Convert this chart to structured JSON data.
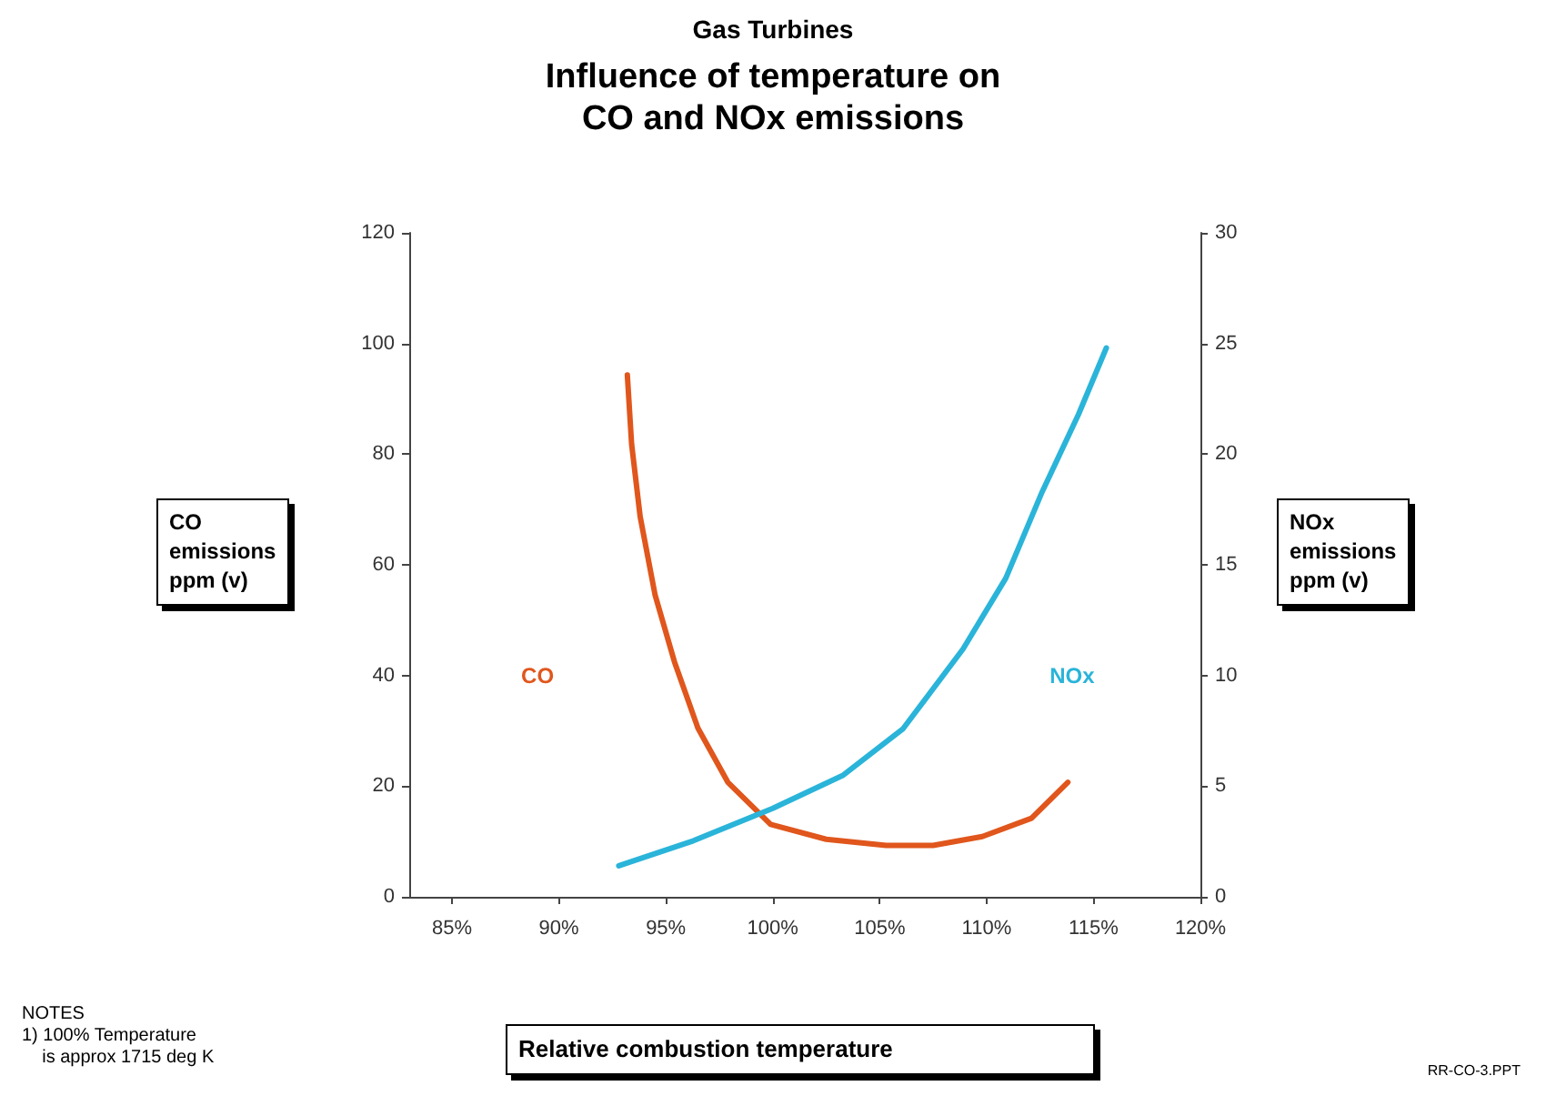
{
  "chart_data": {
    "type": "line",
    "title": "Gas Turbines",
    "subtitle": "Influence of temperature on\nCO and NOx emissions",
    "xlabel": "Relative combustion temperature",
    "ylabel": "CO\nemissions\nppm (v)",
    "y2label": "NOx\nemissions\nppm (v)",
    "xlim": [
      83,
      120
    ],
    "xticks": [
      {
        "value": 85,
        "label": "85%"
      },
      {
        "value": 90,
        "label": "90%"
      },
      {
        "value": 95,
        "label": "95%"
      },
      {
        "value": 100,
        "label": "100%"
      },
      {
        "value": 105,
        "label": "105%"
      },
      {
        "value": 110,
        "label": "110%"
      },
      {
        "value": 115,
        "label": "115%"
      },
      {
        "value": 120,
        "label": "120%"
      }
    ],
    "ylim": [
      0,
      120
    ],
    "yticks": [
      0,
      20,
      40,
      60,
      80,
      100,
      120
    ],
    "y2lim": [
      0,
      30
    ],
    "y2ticks": [
      0,
      5,
      10,
      15,
      20,
      25,
      30
    ],
    "grid": false,
    "marker": "none",
    "line_style": "solid",
    "series": [
      {
        "name": "CO",
        "color": "#e0561c",
        "x": [
          93.2,
          93.4,
          93.8,
          94.5,
          95.4,
          96.5,
          97.9,
          99.9,
          102.5,
          105.3,
          107.5,
          109.8,
          112.1,
          113.8
        ],
        "values": [
          94.3,
          81.8,
          68.7,
          54.5,
          42.5,
          30.5,
          20.7,
          13.1,
          10.4,
          9.3,
          9.3,
          10.9,
          14.2,
          20.7
        ]
      },
      {
        "name": "NOx",
        "color": "#2ab4d9",
        "axis": "y2",
        "x": [
          92.8,
          96.2,
          100.0,
          103.3,
          106.1,
          108.9,
          110.9,
          112.6,
          114.3,
          115.6
        ],
        "values": [
          1.4,
          2.5,
          4.0,
          5.5,
          7.6,
          11.2,
          14.4,
          18.3,
          21.8,
          24.8
        ]
      }
    ],
    "annotations": [
      "NOTES\n1) 100% Temperature\n    is approx 1715 deg K",
      "RR-CO-3.PPT"
    ]
  }
}
